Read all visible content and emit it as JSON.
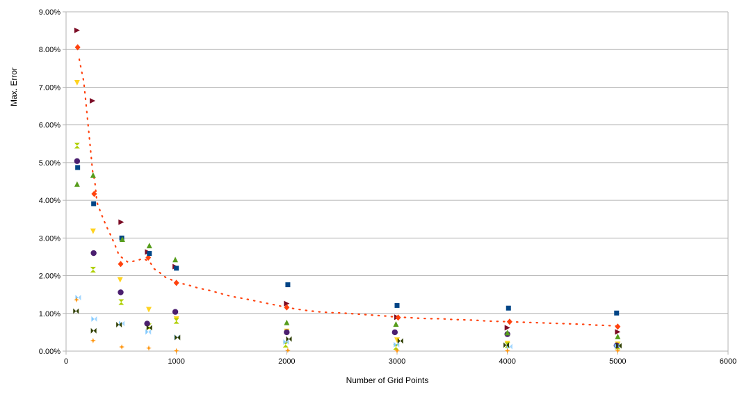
{
  "chart_data": {
    "type": "scatter",
    "title": "",
    "xlabel": "Number of Grid Points",
    "ylabel": "Max. Error",
    "xlim": [
      0,
      6000
    ],
    "ylim": [
      0,
      0.09
    ],
    "x_ticks": [
      0,
      1000,
      2000,
      3000,
      4000,
      5000,
      6000
    ],
    "y_ticks": [
      0,
      0.01,
      0.02,
      0.03,
      0.04,
      0.05,
      0.06,
      0.07,
      0.08,
      0.09
    ],
    "x_tick_labels": [
      "0",
      "1000",
      "2000",
      "3000",
      "4000",
      "5000",
      "6000"
    ],
    "y_tick_labels": [
      "0.00%",
      "1.00%",
      "2.00%",
      "3.00%",
      "4.00%",
      "5.00%",
      "6.00%",
      "7.00%",
      "8.00%",
      "9.00%"
    ],
    "grid": "horizontal",
    "legend": "none",
    "series": [
      {
        "marker": "tri-right",
        "color": "#7b0c25",
        "x": [
          100,
          240,
          500,
          740,
          990,
          2000,
          3000,
          4000,
          5000
        ],
        "y": [
          0.0851,
          0.0664,
          0.0342,
          0.0263,
          0.0224,
          0.0126,
          0.009,
          0.0062,
          0.0051
        ]
      },
      {
        "marker": "diamond",
        "color": "#ff420e",
        "x": [
          105,
          255,
          495,
          745,
          1000,
          2000,
          3010,
          4020,
          5000
        ],
        "y": [
          0.0806,
          0.0417,
          0.0231,
          0.0248,
          0.0181,
          0.0116,
          0.0089,
          0.0078,
          0.0065
        ]
      },
      {
        "marker": "tri-down",
        "color": "#ffd320",
        "x": [
          100,
          245,
          490,
          750,
          1000,
          2000,
          3000,
          4000,
          5000
        ],
        "y": [
          0.0712,
          0.0318,
          0.0189,
          0.011,
          0.0085,
          0.0052,
          0.0029,
          0.002,
          0.0018
        ]
      },
      {
        "marker": "hourglass",
        "color": "#aecf00",
        "x": [
          100,
          245,
          500,
          750,
          1000,
          1990,
          2990,
          4000,
          5000
        ],
        "y": [
          0.0545,
          0.0216,
          0.013,
          0.0066,
          0.008,
          0.0017,
          0.0011,
          0.0016,
          0.0012
        ]
      },
      {
        "marker": "circle",
        "color": "#4b1f6f",
        "x": [
          100,
          250,
          495,
          735,
          990,
          2000,
          2980,
          4000,
          4990
        ],
        "y": [
          0.0504,
          0.026,
          0.0156,
          0.0073,
          0.0104,
          0.005,
          0.005,
          0.0045,
          0.0015
        ]
      },
      {
        "marker": "square",
        "color": "#004586",
        "x": [
          105,
          250,
          505,
          755,
          1000,
          2010,
          3000,
          4010,
          4990
        ],
        "y": [
          0.0487,
          0.0391,
          0.03,
          0.0259,
          0.022,
          0.0176,
          0.0121,
          0.0114,
          0.0101
        ]
      },
      {
        "marker": "triangle-up",
        "color": "#579d1c",
        "x": [
          100,
          245,
          510,
          755,
          990,
          2000,
          2990,
          4000,
          5000
        ],
        "y": [
          0.0443,
          0.0467,
          0.0297,
          0.028,
          0.0243,
          0.0076,
          0.0072,
          0.0049,
          0.0039
        ]
      },
      {
        "marker": "bowtie-left",
        "color": "#83caff",
        "x": [
          110,
          255,
          505,
          745,
          1005,
          1995,
          2995,
          4020,
          4995
        ],
        "y": [
          0.0142,
          0.0085,
          0.0073,
          0.0051,
          0.0037,
          0.0024,
          0.0017,
          0.0012,
          0.0014
        ]
      },
      {
        "marker": "plus4",
        "color": "#ff950e",
        "x": [
          95,
          245,
          505,
          750,
          1000,
          2010,
          3000,
          4000,
          5000
        ],
        "y": [
          0.0136,
          0.0028,
          0.0011,
          0.0008,
          0.0001,
          0.0002,
          0.0001,
          0.0001,
          0.0001
        ]
      },
      {
        "marker": "bowtie",
        "color": "#314004",
        "x": [
          90,
          250,
          480,
          755,
          1010,
          2020,
          3030,
          3990,
          5010
        ],
        "y": [
          0.0106,
          0.0054,
          0.007,
          0.0062,
          0.0036,
          0.0032,
          0.0027,
          0.0016,
          0.0014
        ]
      },
      {
        "type": "line",
        "style": "dotted",
        "color": "#ff420e",
        "x": [
          120,
          140,
          160,
          180,
          200,
          220,
          240,
          260,
          280,
          320,
          360,
          400,
          440,
          480,
          560,
          640,
          700,
          760,
          800,
          850,
          900,
          950,
          1000,
          1100,
          1200,
          1300,
          1400,
          1500,
          1600,
          1700,
          1800,
          1900,
          2000,
          2100,
          2200,
          2300,
          2400,
          2500,
          2600,
          2700,
          2800,
          2900,
          3000,
          3100,
          3200,
          3300,
          3400,
          3500,
          3600,
          3700,
          3800,
          3900,
          4000,
          4100,
          4200,
          4300,
          4400,
          4500,
          4600,
          4700,
          4800,
          4900,
          5000
        ],
        "y": [
          0.0774,
          0.0744,
          0.0716,
          0.0658,
          0.06,
          0.054,
          0.0478,
          0.0451,
          0.0395,
          0.0363,
          0.0335,
          0.031,
          0.0284,
          0.0254,
          0.0236,
          0.024,
          0.0246,
          0.0236,
          0.0218,
          0.0208,
          0.0196,
          0.019,
          0.0182,
          0.0176,
          0.0167,
          0.0161,
          0.0153,
          0.0145,
          0.014,
          0.0134,
          0.0128,
          0.0122,
          0.0116,
          0.0111,
          0.0107,
          0.0104,
          0.0102,
          0.0101,
          0.0099,
          0.0097,
          0.0095,
          0.0093,
          0.009,
          0.0089,
          0.0087,
          0.0086,
          0.0086,
          0.0084,
          0.0083,
          0.0082,
          0.008,
          0.0079,
          0.0078,
          0.0077,
          0.0076,
          0.0075,
          0.0074,
          0.0073,
          0.0072,
          0.0071,
          0.0069,
          0.0068,
          0.0066
        ]
      }
    ]
  }
}
